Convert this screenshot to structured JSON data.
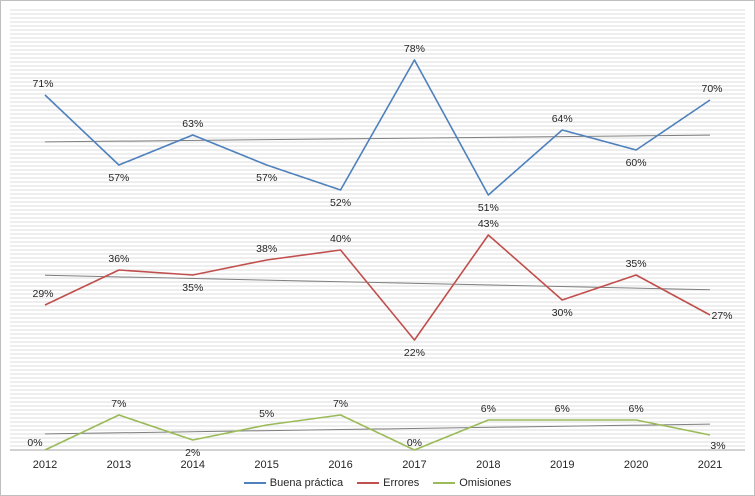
{
  "chart_data": {
    "type": "line",
    "title": "",
    "xlabel": "",
    "ylabel": "",
    "categories": [
      "2012",
      "2013",
      "2014",
      "2015",
      "2016",
      "2017",
      "2018",
      "2019",
      "2020",
      "2021"
    ],
    "ylim": [
      0,
      100
    ],
    "grid": true,
    "trendlines": true,
    "legend_position": "bottom",
    "series": [
      {
        "name": "Buena práctica",
        "color": "#4f81bd",
        "values": [
          71,
          57,
          63,
          57,
          52,
          78,
          51,
          64,
          60,
          70
        ],
        "labels": [
          "71%",
          "57%",
          "63%",
          "57%",
          "52%",
          "78%",
          "51%",
          "64%",
          "60%",
          "70%"
        ]
      },
      {
        "name": "Errores",
        "color": "#c0504d",
        "values": [
          29,
          36,
          35,
          38,
          40,
          22,
          43,
          30,
          35,
          27
        ],
        "labels": [
          "29%",
          "36%",
          "35%",
          "38%",
          "40%",
          "22%",
          "43%",
          "30%",
          "35%",
          "27%"
        ]
      },
      {
        "name": "Omisiones",
        "color": "#9bbb59",
        "values": [
          0,
          7,
          2,
          5,
          7,
          0,
          6,
          6,
          6,
          3
        ],
        "labels": [
          "0%",
          "7%",
          "2%",
          "5%",
          "7%",
          "0%",
          "6%",
          "6%",
          "6%",
          "3%"
        ]
      }
    ],
    "trendline_color": "#7f7f7f"
  }
}
